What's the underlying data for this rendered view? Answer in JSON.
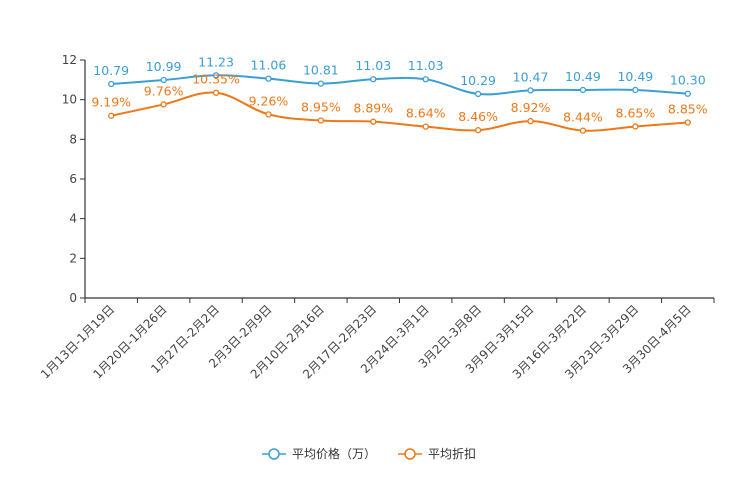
{
  "chart_data": {
    "type": "line",
    "title": "",
    "xlabel": "",
    "ylabel": "",
    "ylim": [
      0,
      12
    ],
    "yticks": [
      0,
      2,
      4,
      6,
      8,
      10,
      12
    ],
    "grid": false,
    "legend": "bottom",
    "categories": [
      "1月13日-1月19日",
      "1月20日-1月26日",
      "1月27日-2月2日",
      "2月3日-2月9日",
      "2月10日-2月16日",
      "2月17日-2月23日",
      "2月24日-3月1日",
      "3月2日-3月8日",
      "3月9日-3月15日",
      "3月16日-3月22日",
      "3月23日-3月29日",
      "3月30日-4月5日"
    ],
    "series": [
      {
        "name": "平均价格（万）",
        "color": "#3a9fd5",
        "values": [
          10.79,
          10.99,
          11.23,
          11.06,
          10.81,
          11.03,
          11.03,
          10.29,
          10.47,
          10.49,
          10.49,
          10.3
        ],
        "labels": [
          "10.79",
          "10.99",
          "11.23",
          "11.06",
          "10.81",
          "11.03",
          "11.03",
          "10.29",
          "10.47",
          "10.49",
          "10.49",
          "10.30"
        ]
      },
      {
        "name": "平均折扣",
        "color": "#f07818",
        "values": [
          9.19,
          9.76,
          10.35,
          9.26,
          8.95,
          8.89,
          8.64,
          8.46,
          8.92,
          8.44,
          8.65,
          8.85
        ],
        "labels": [
          "9.19%",
          "9.76%",
          "10.35%",
          "9.26%",
          "8.95%",
          "8.89%",
          "8.64%",
          "8.46%",
          "8.92%",
          "8.44%",
          "8.65%",
          "8.85%"
        ]
      }
    ]
  }
}
